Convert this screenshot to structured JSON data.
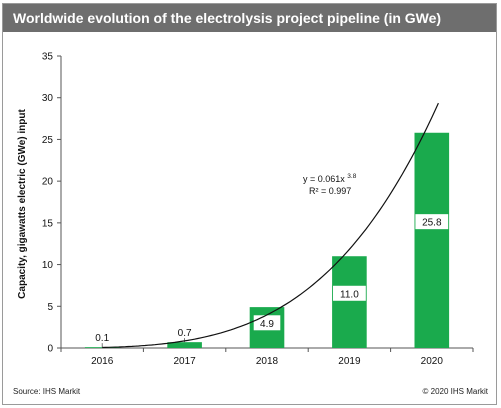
{
  "header": {
    "title": "Worldwide evolution of the electrolysis project pipeline (in GWe)"
  },
  "footer": {
    "source": "Source: IHS Markit",
    "copyright": "© 2020 IHS Markit"
  },
  "colors": {
    "bar": "#1aaa4d",
    "title_bg": "#6e6e6e",
    "curve": "#111111"
  },
  "chart_data": {
    "type": "bar",
    "categories": [
      "2016",
      "2017",
      "2018",
      "2019",
      "2020"
    ],
    "values": [
      0.1,
      0.7,
      4.9,
      11.0,
      25.8
    ],
    "value_labels": [
      "0.1",
      "0.7",
      "4.9",
      "11.0",
      "25.8"
    ],
    "ylabel": "Capacity, gigawatts electric (GWe) input",
    "xlabel": "",
    "ylim": [
      0,
      35
    ],
    "yticks": [
      "0",
      "5",
      "10",
      "15",
      "20",
      "25",
      "30",
      "35"
    ],
    "grid": false,
    "trendline": {
      "type": "power",
      "coefficient": 0.061,
      "exponent": 3.8,
      "equation_text": "y = 0.061x",
      "equation_exponent": "3.8",
      "r2_text": "R² = 0.997"
    }
  }
}
